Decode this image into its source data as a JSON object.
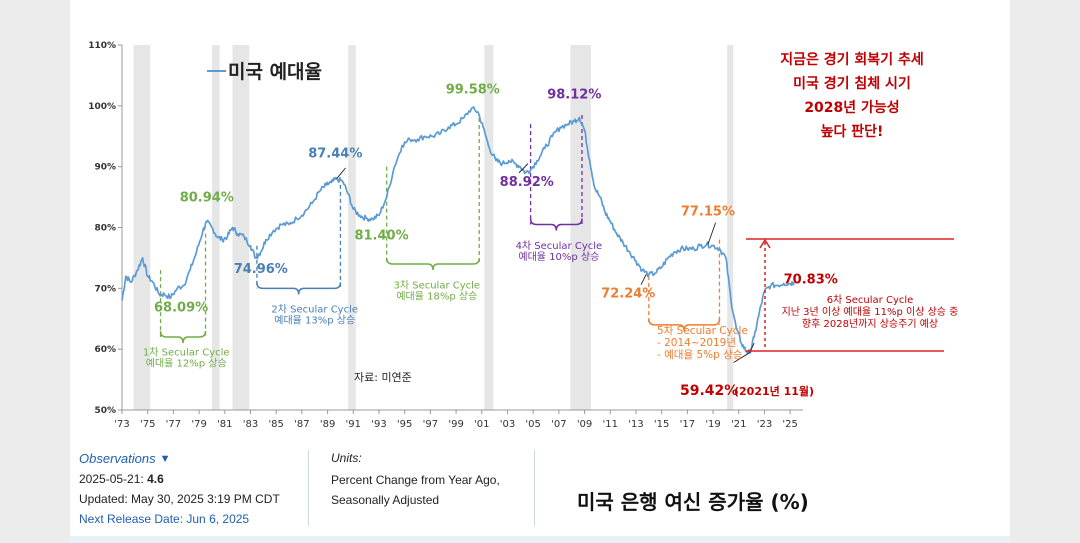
{
  "chart_data": {
    "type": "line",
    "series": [
      {
        "name": "미국 예대율"
      }
    ],
    "legend": {
      "label": "미국 예대율",
      "color": "#5b9bd5",
      "placement": "top-left"
    },
    "ylim": [
      50,
      110
    ],
    "xlim": [
      1973,
      2026
    ],
    "y_ticks": [
      {
        "value": 50,
        "label": "50%"
      },
      {
        "value": 60,
        "label": "60%"
      },
      {
        "value": 70,
        "label": "70%"
      },
      {
        "value": 80,
        "label": "80%"
      },
      {
        "value": 90,
        "label": "90%"
      },
      {
        "value": 100,
        "label": "100%"
      },
      {
        "value": 110,
        "label": "110%"
      }
    ],
    "x_ticks": [
      {
        "value": 1973,
        "label": "'73"
      },
      {
        "value": 1975,
        "label": "'75"
      },
      {
        "value": 1977,
        "label": "'77"
      },
      {
        "value": 1979,
        "label": "'79"
      },
      {
        "value": 1981,
        "label": "'81"
      },
      {
        "value": 1983,
        "label": "'83"
      },
      {
        "value": 1985,
        "label": "'85"
      },
      {
        "value": 1987,
        "label": "'87"
      },
      {
        "value": 1989,
        "label": "'89"
      },
      {
        "value": 1991,
        "label": "'91"
      },
      {
        "value": 1993,
        "label": "'93"
      },
      {
        "value": 1995,
        "label": "'95"
      },
      {
        "value": 1997,
        "label": "'97"
      },
      {
        "value": 1999,
        "label": "'99"
      },
      {
        "value": 2001,
        "label": "'01"
      },
      {
        "value": 2003,
        "label": "'03"
      },
      {
        "value": 2005,
        "label": "'05"
      },
      {
        "value": 2007,
        "label": "'07"
      },
      {
        "value": 2009,
        "label": "'09"
      },
      {
        "value": 2011,
        "label": "'11"
      },
      {
        "value": 2013,
        "label": "'13"
      },
      {
        "value": 2015,
        "label": "'15"
      },
      {
        "value": 2017,
        "label": "'17"
      },
      {
        "value": 2019,
        "label": "'19"
      },
      {
        "value": 2021,
        "label": "'21"
      },
      {
        "value": 2023,
        "label": "'23"
      },
      {
        "value": 2025,
        "label": "'25"
      }
    ],
    "recessions": [
      [
        1973.9,
        1975.2
      ],
      [
        1980.0,
        1980.6
      ],
      [
        1981.6,
        1982.9
      ],
      [
        1990.6,
        1991.2
      ],
      [
        2001.2,
        2001.9
      ],
      [
        2007.9,
        2009.5
      ],
      [
        2020.1,
        2020.4
      ]
    ],
    "points": [
      [
        1973.0,
        68
      ],
      [
        1973.3,
        72
      ],
      [
        1973.7,
        71
      ],
      [
        1974.2,
        73
      ],
      [
        1974.6,
        75
      ],
      [
        1975.0,
        72
      ],
      [
        1975.4,
        71
      ],
      [
        1975.9,
        69
      ],
      [
        1976.3,
        69
      ],
      [
        1976.8,
        68.5
      ],
      [
        1977.3,
        70
      ],
      [
        1977.8,
        70.5
      ],
      [
        1978.3,
        73
      ],
      [
        1978.8,
        76
      ],
      [
        1979.3,
        79.5
      ],
      [
        1979.6,
        80.9
      ],
      [
        1980.0,
        80
      ],
      [
        1980.4,
        78.5
      ],
      [
        1980.8,
        78
      ],
      [
        1981.2,
        78.5
      ],
      [
        1981.6,
        80
      ],
      [
        1982.0,
        79
      ],
      [
        1982.5,
        78.5
      ],
      [
        1983.0,
        77
      ],
      [
        1983.4,
        75
      ],
      [
        1983.8,
        76
      ],
      [
        1984.2,
        78
      ],
      [
        1984.8,
        79.5
      ],
      [
        1985.4,
        80.5
      ],
      [
        1986.0,
        80.5
      ],
      [
        1986.6,
        81.5
      ],
      [
        1987.2,
        82.5
      ],
      [
        1987.8,
        84
      ],
      [
        1988.4,
        86
      ],
      [
        1988.9,
        87
      ],
      [
        1989.3,
        87.4
      ],
      [
        1989.7,
        88
      ],
      [
        1990.2,
        87.5
      ],
      [
        1990.6,
        85.5
      ],
      [
        1991.0,
        83
      ],
      [
        1991.5,
        82
      ],
      [
        1992.0,
        81.5
      ],
      [
        1992.5,
        81.4
      ],
      [
        1993.0,
        82
      ],
      [
        1993.6,
        85
      ],
      [
        1994.2,
        90
      ],
      [
        1994.8,
        93.5
      ],
      [
        1995.4,
        94.5
      ],
      [
        1996.0,
        94.5
      ],
      [
        1996.6,
        95
      ],
      [
        1997.2,
        95
      ],
      [
        1997.8,
        95.5
      ],
      [
        1998.4,
        96.5
      ],
      [
        1999.0,
        97
      ],
      [
        1999.6,
        98
      ],
      [
        2000.2,
        99.6
      ],
      [
        2000.7,
        99
      ],
      [
        2001.1,
        96.5
      ],
      [
        2001.6,
        93
      ],
      [
        2002.1,
        91
      ],
      [
        2002.6,
        90.5
      ],
      [
        2003.1,
        91
      ],
      [
        2003.6,
        90.5
      ],
      [
        2004.0,
        90
      ],
      [
        2004.4,
        89
      ],
      [
        2004.8,
        89.5
      ],
      [
        2005.3,
        91
      ],
      [
        2005.9,
        93
      ],
      [
        2006.5,
        95
      ],
      [
        2007.1,
        96.5
      ],
      [
        2007.7,
        97
      ],
      [
        2008.2,
        97.5
      ],
      [
        2008.6,
        98.1
      ],
      [
        2009.0,
        96
      ],
      [
        2009.4,
        91
      ],
      [
        2009.8,
        86.5
      ],
      [
        2010.2,
        85
      ],
      [
        2010.6,
        82.5
      ],
      [
        2011.0,
        81
      ],
      [
        2011.5,
        79
      ],
      [
        2012.0,
        77.5
      ],
      [
        2012.5,
        76
      ],
      [
        2013.0,
        74.5
      ],
      [
        2013.5,
        73
      ],
      [
        2014.0,
        72.2
      ],
      [
        2014.5,
        72.5
      ],
      [
        2015.0,
        73.5
      ],
      [
        2015.5,
        75
      ],
      [
        2016.0,
        76
      ],
      [
        2016.5,
        76.5
      ],
      [
        2017.0,
        76.5
      ],
      [
        2017.5,
        76.5
      ],
      [
        2018.0,
        77
      ],
      [
        2018.5,
        77.2
      ],
      [
        2019.0,
        77
      ],
      [
        2019.5,
        76.5
      ],
      [
        2020.0,
        75
      ],
      [
        2020.4,
        68
      ],
      [
        2020.8,
        63.5
      ],
      [
        2021.2,
        61
      ],
      [
        2021.6,
        59.6
      ],
      [
        2021.85,
        59.42
      ],
      [
        2022.2,
        62
      ],
      [
        2022.6,
        66
      ],
      [
        2023.0,
        69.5
      ],
      [
        2023.5,
        70.5
      ],
      [
        2024.0,
        70.5
      ],
      [
        2024.5,
        70.8
      ],
      [
        2025.0,
        70.8
      ],
      [
        2025.3,
        71
      ]
    ],
    "annotations": [
      {
        "label": "80.94%",
        "x": 1979.6,
        "y": 84.3,
        "color": "#70ad47"
      },
      {
        "label": "68.09%",
        "x": 1977.6,
        "y": 66.2,
        "color": "#70ad47"
      },
      {
        "label": "74.96%",
        "x": 1983.8,
        "y": 72.5,
        "color": "#4a7fb5"
      },
      {
        "label": "87.44%",
        "x": 1989.6,
        "y": 91.5,
        "color": "#4a7fb5"
      },
      {
        "label": "81.40%",
        "x": 1993.2,
        "y": 78.0,
        "color": "#70ad47"
      },
      {
        "label": "99.58%",
        "x": 2000.3,
        "y": 102.0,
        "color": "#70ad47"
      },
      {
        "label": "88.92%",
        "x": 2004.5,
        "y": 86.8,
        "color": "#7030a0"
      },
      {
        "label": "98.12%",
        "x": 2008.2,
        "y": 101.2,
        "color": "#7030a0"
      },
      {
        "label": "72.24%",
        "x": 2012.4,
        "y": 68.5,
        "color": "#ed7d31"
      },
      {
        "label": "77.15%",
        "x": 2018.6,
        "y": 82.0,
        "color": "#ed7d31"
      },
      {
        "label": "70.83%",
        "x": 2026.6,
        "y": 70.8,
        "color": "#c00000"
      }
    ],
    "cycles": [
      {
        "name": "1차 Secular Cycle",
        "desc": "예대율 12%p 상승",
        "color": "#70ad47",
        "x": 1978.0,
        "y": 59.0
      },
      {
        "name": "2차 Secular Cycle",
        "desc": "예대율 13%p 상승",
        "color": "#4a7fb5",
        "x": 1988.0,
        "y": 66.0
      },
      {
        "name": "3차 Secular Cycle",
        "desc": "예대율 18%p 상승",
        "color": "#70ad47",
        "x": 1997.5,
        "y": 70.0
      },
      {
        "name": "4차 Secular Cycle",
        "desc": "예대율 10%p 상승",
        "color": "#7030a0",
        "x": 2007.0,
        "y": 76.5
      }
    ],
    "cycle5": {
      "name": "5차 Secular Cycle",
      "line1": "- 2014~2019년",
      "line2": "- 예대율 5%p 상승",
      "color": "#ed7d31"
    },
    "cycle6": {
      "name": "6차 Secular Cycle",
      "line1": "지난 3년 이상 예대율 11%p 이상 상승 중",
      "line2": "향후 2028년까지 상승주기 예상",
      "color": "#c00000"
    },
    "low_label": "59.42%",
    "low_note": "(2021년 11월)",
    "source": "자료: 미연준",
    "forecast_note": [
      "지금은 경기 회복기 추세",
      "미국 경기 침체 시기",
      "2028년 가능성",
      "높다 판단!"
    ]
  },
  "observations": {
    "title": "Observations",
    "date_label": "2025-05-21:",
    "value": "4.6",
    "updated": "Updated: May 30, 2025 3:19 PM CDT",
    "next_release": "Next Release Date: Jun 6, 2025"
  },
  "units": {
    "title": "Units:",
    "line1": "Percent Change from Year Ago,",
    "line2": "Seasonally Adjusted"
  },
  "footer_title": "미국 은행 여신 증가율 (%)"
}
